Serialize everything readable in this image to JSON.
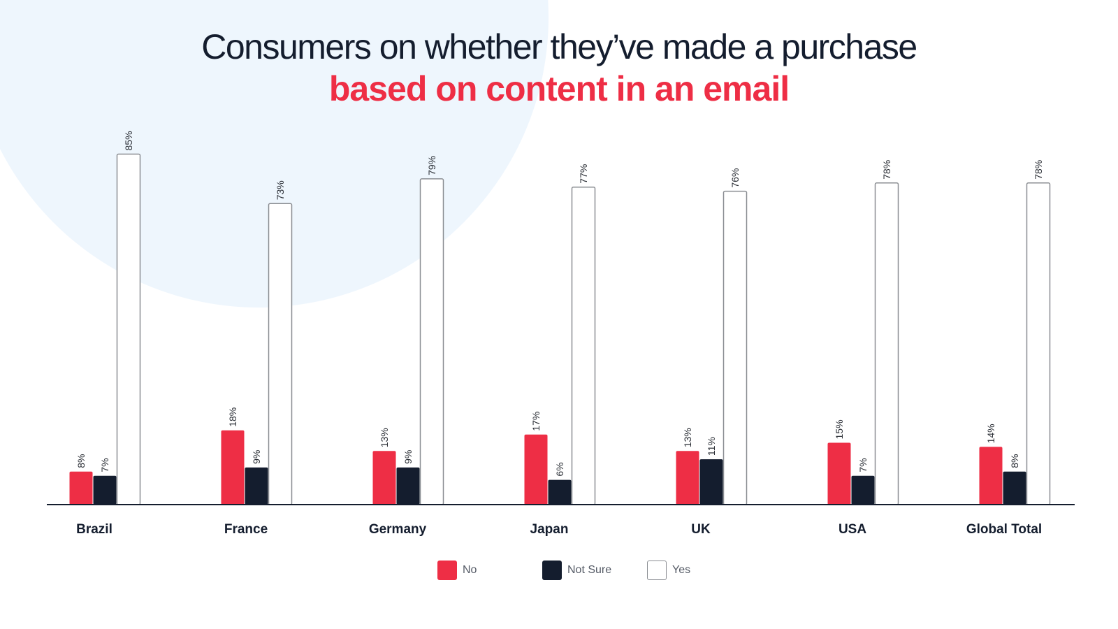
{
  "header": {
    "title_line1": "Consumers on whether they’ve made a purchase",
    "title_line2": "based on content in an email"
  },
  "colors": {
    "no": "#ee2e45",
    "not_sure": "#141d2e",
    "yes": "#ffffff",
    "yes_border": "#8a8d92",
    "title_dark": "#141d2e",
    "title_accent": "#ee2e45",
    "background_accent": "#eef6fd"
  },
  "chart_data": {
    "type": "bar",
    "title": "Consumers on whether they’ve made a purchase based on content in an email",
    "categories": [
      "Brazil",
      "France",
      "Germany",
      "Japan",
      "UK",
      "USA",
      "Global Total"
    ],
    "series": [
      {
        "name": "No",
        "values": [
          8,
          18,
          13,
          17,
          13,
          15,
          14
        ]
      },
      {
        "name": "Not Sure",
        "values": [
          7,
          9,
          9,
          6,
          11,
          7,
          8
        ]
      },
      {
        "name": "Yes",
        "values": [
          85,
          73,
          79,
          77,
          76,
          78,
          78
        ]
      }
    ],
    "value_suffix": "%",
    "xlabel": "",
    "ylabel": "",
    "ylim": [
      0,
      85
    ],
    "grid": false,
    "legend_position": "bottom-center"
  }
}
